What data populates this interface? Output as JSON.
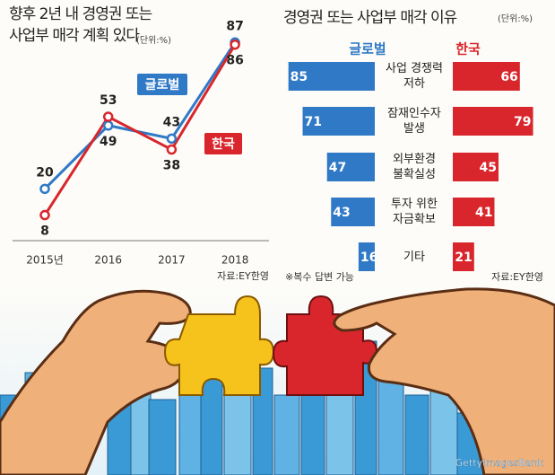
{
  "chart_data": [
    {
      "type": "line",
      "title": "향후 2년 내 경영권 또는\n사업부 매각 계획 있다",
      "unit": "(단위:%)",
      "categories": [
        "2015년",
        "2016",
        "2017",
        "2018"
      ],
      "series": [
        {
          "name": "글로벌",
          "color": "#2f79c6",
          "values": [
            20,
            49,
            43,
            87
          ]
        },
        {
          "name": "한국",
          "color": "#d8262c",
          "values": [
            8,
            53,
            38,
            86
          ]
        }
      ],
      "ylim": [
        0,
        90
      ],
      "source": "자료:EY한영"
    },
    {
      "type": "bar",
      "title": "경영권 또는 사업부 매각 이유",
      "unit": "(단위:%)",
      "categories": [
        "사업 경쟁력\n저하",
        "잠재인수자\n발생",
        "외부환경\n불확실성",
        "투자 위한\n자금확보",
        "기타"
      ],
      "series": [
        {
          "name": "글로벌",
          "color": "#2f79c6",
          "values": [
            85,
            71,
            47,
            43,
            16
          ]
        },
        {
          "name": "한국",
          "color": "#d8262c",
          "values": [
            66,
            79,
            45,
            41,
            21
          ]
        }
      ],
      "xlim": [
        0,
        90
      ],
      "note": "※복수 답변 가능",
      "source": "자료:EY한영"
    }
  ],
  "credit": "GettyImagesBank"
}
